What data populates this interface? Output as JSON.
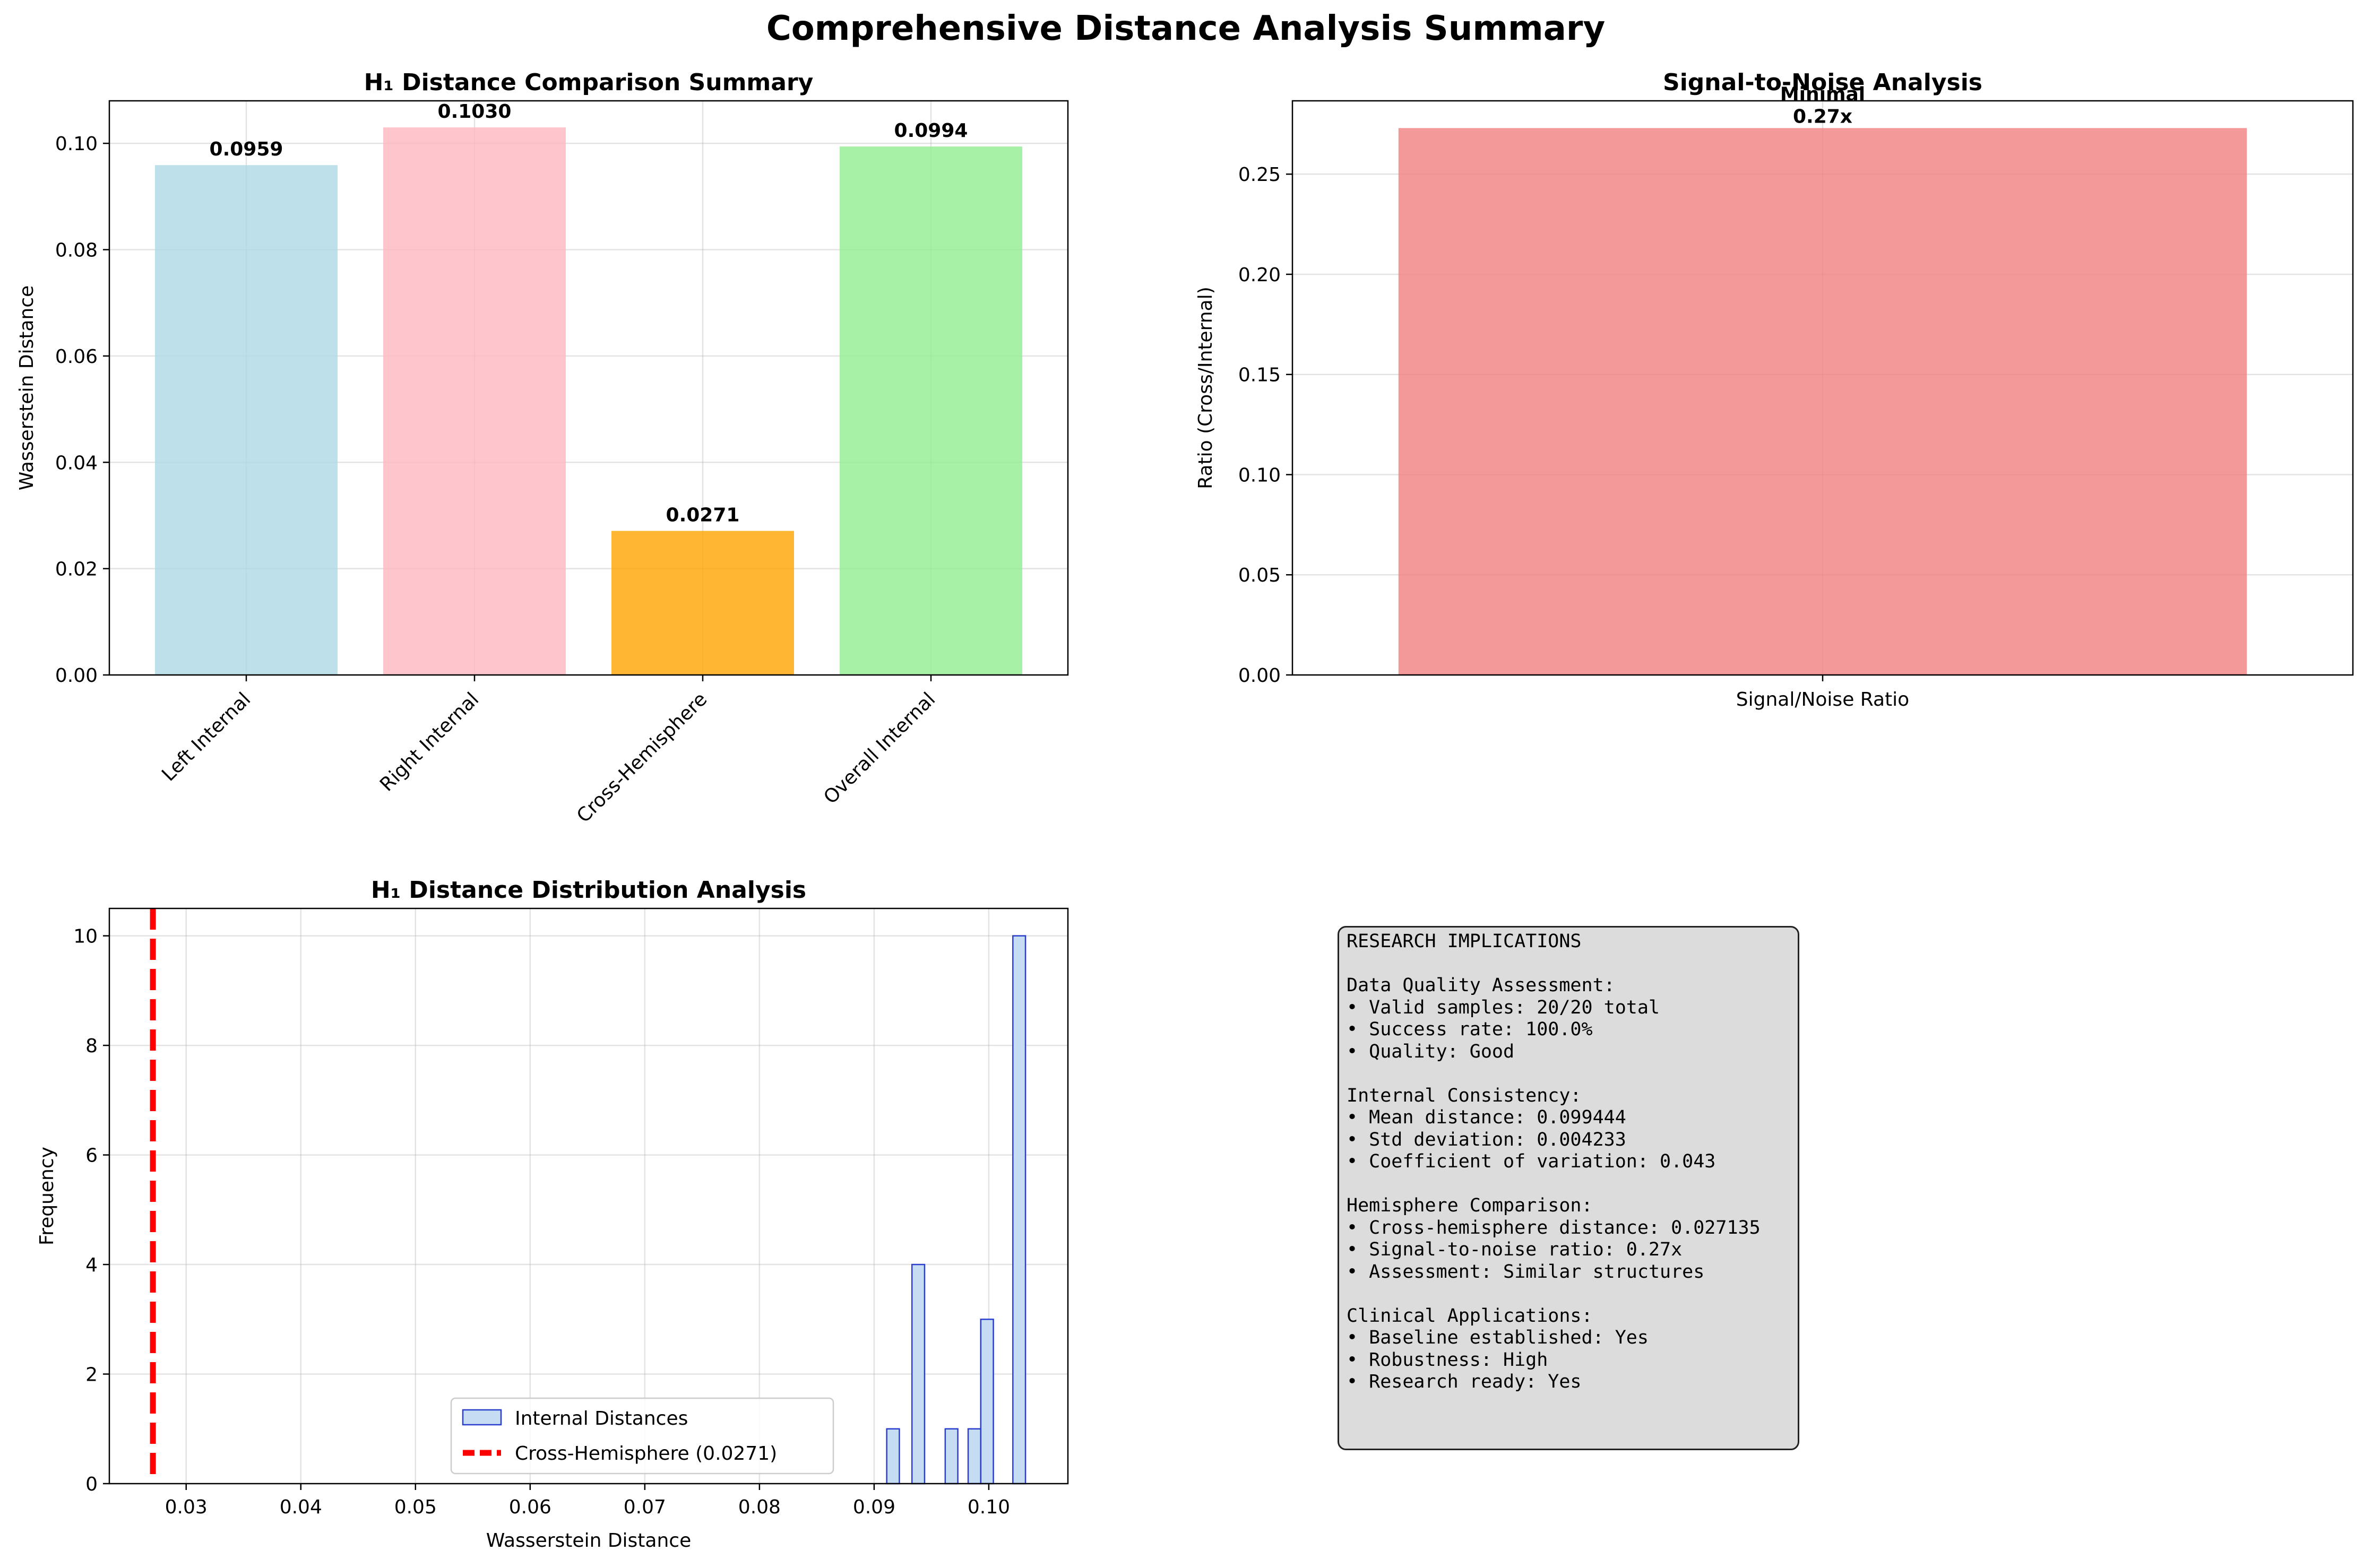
{
  "figure": {
    "title": "Comprehensive Distance Analysis Summary"
  },
  "chart_data": [
    {
      "type": "bar",
      "title": "H₁ Distance Comparison Summary",
      "xlabel": "",
      "ylabel": "Wasserstein Distance",
      "categories": [
        "Left Internal",
        "Right Internal",
        "Cross-Hemisphere",
        "Overall Internal"
      ],
      "values": [
        0.0959,
        0.103,
        0.0271,
        0.0994
      ],
      "value_labels": [
        "0.0959",
        "0.1030",
        "0.0271",
        "0.0994"
      ],
      "colors": [
        "#add8e6",
        "#ffb6c1",
        "#ffa500",
        "#90ee90"
      ],
      "ylim": [
        0,
        0.108
      ],
      "yticks": [
        0.0,
        0.02,
        0.04,
        0.06,
        0.08,
        0.1
      ],
      "ytick_labels": [
        "0.00",
        "0.02",
        "0.04",
        "0.06",
        "0.08",
        "0.10"
      ],
      "grid": true
    },
    {
      "type": "bar",
      "title": "Signal-to-Noise Analysis",
      "xlabel": "",
      "ylabel": "Ratio (Cross/Internal)",
      "categories": [
        "Signal/Noise Ratio"
      ],
      "values": [
        0.273
      ],
      "value_labels": [
        "Minimal\n0.27x"
      ],
      "colors": [
        "#f08080"
      ],
      "ylim": [
        0,
        0.2866
      ],
      "yticks": [
        0.0,
        0.05,
        0.1,
        0.15,
        0.2,
        0.25
      ],
      "ytick_labels": [
        "0.00",
        "0.05",
        "0.10",
        "0.15",
        "0.20",
        "0.25"
      ],
      "grid": true
    },
    {
      "type": "histogram",
      "title": "H₁ Distance Distribution Analysis",
      "xlabel": "Wasserstein Distance",
      "ylabel": "Frequency",
      "bins": [
        {
          "x0": 0.0911,
          "x1": 0.0922,
          "count": 1
        },
        {
          "x0": 0.0933,
          "x1": 0.0944,
          "count": 4
        },
        {
          "x0": 0.0962,
          "x1": 0.0973,
          "count": 1
        },
        {
          "x0": 0.0982,
          "x1": 0.0993,
          "count": 1
        },
        {
          "x0": 0.0993,
          "x1": 0.1004,
          "count": 3
        },
        {
          "x0": 0.1021,
          "x1": 0.1032,
          "count": 10
        }
      ],
      "vline": {
        "x": 0.0271,
        "color": "#ff0000",
        "label": "Cross-Hemisphere (0.0271)"
      },
      "xlim": [
        0.0233,
        0.1069
      ],
      "ylim": [
        0,
        10.5
      ],
      "xticks": [
        0.03,
        0.04,
        0.05,
        0.06,
        0.07,
        0.08,
        0.09,
        0.1
      ],
      "xtick_labels": [
        "0.03",
        "0.04",
        "0.05",
        "0.06",
        "0.07",
        "0.08",
        "0.09",
        "0.10"
      ],
      "yticks": [
        0,
        2,
        4,
        6,
        8,
        10
      ],
      "ytick_labels": [
        "0",
        "2",
        "4",
        "6",
        "8",
        "10"
      ],
      "legend": {
        "position": "lower-center",
        "entries": [
          "Internal Distances",
          "Cross-Hemisphere (0.0271)"
        ]
      },
      "colors": {
        "fill": "#c6dcf2",
        "edge": "#2b3fcf"
      },
      "grid": true
    }
  ],
  "research_text": "RESEARCH IMPLICATIONS\n\nData Quality Assessment:\n• Valid samples: 20/20 total\n• Success rate: 100.0%\n• Quality: Good\n\nInternal Consistency:\n• Mean distance: 0.099444\n• Std deviation: 0.004233\n• Coefficient of variation: 0.043\n\nHemisphere Comparison:\n• Cross-hemisphere distance: 0.027135\n• Signal-to-noise ratio: 0.27x\n• Assessment: Similar structures\n\nClinical Applications:\n• Baseline established: Yes\n• Robustness: High\n• Research ready: Yes"
}
